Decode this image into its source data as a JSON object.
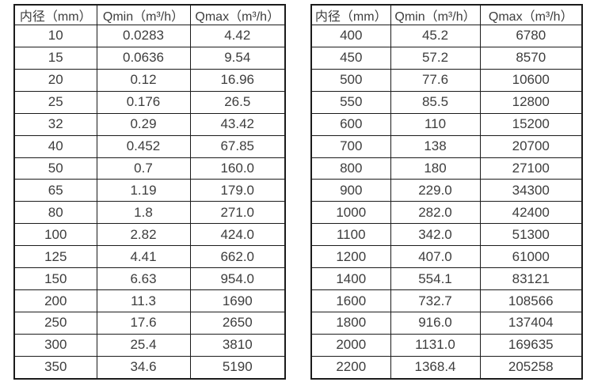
{
  "page": {
    "background_color": "#ffffff",
    "text_color": "#3d3d3d",
    "border_color": "#1b1b1b"
  },
  "tables": [
    {
      "name": "flow-table-small-diameters",
      "headers": [
        "内径（mm）",
        "Qmin（m³/h）",
        "Qmax（m³/h）"
      ],
      "rows": [
        [
          "10",
          "0.0283",
          "4.42"
        ],
        [
          "15",
          "0.0636",
          "9.54"
        ],
        [
          "20",
          "0.12",
          "16.96"
        ],
        [
          "25",
          "0.176",
          "26.5"
        ],
        [
          "32",
          "0.29",
          "43.42"
        ],
        [
          "40",
          "0.452",
          "67.85"
        ],
        [
          "50",
          "0.7",
          "160.0"
        ],
        [
          "65",
          "1.19",
          "179.0"
        ],
        [
          "80",
          "1.8",
          "271.0"
        ],
        [
          "100",
          "2.82",
          "424.0"
        ],
        [
          "125",
          "4.41",
          "662.0"
        ],
        [
          "150",
          "6.63",
          "954.0"
        ],
        [
          "200",
          "11.3",
          "1690"
        ],
        [
          "250",
          "17.6",
          "2650"
        ],
        [
          "300",
          "25.4",
          "3810"
        ],
        [
          "350",
          "34.6",
          "5190"
        ]
      ]
    },
    {
      "name": "flow-table-large-diameters",
      "headers": [
        "内径（mm）",
        "Qmin（m³/h）",
        "Qmax（m³/h）"
      ],
      "rows": [
        [
          "400",
          "45.2",
          "6780"
        ],
        [
          "450",
          "57.2",
          "8570"
        ],
        [
          "500",
          "77.6",
          "10600"
        ],
        [
          "550",
          "85.5",
          "12800"
        ],
        [
          "600",
          "110",
          "15200"
        ],
        [
          "700",
          "138",
          "20700"
        ],
        [
          "800",
          "180",
          "27100"
        ],
        [
          "900",
          "229.0",
          "34300"
        ],
        [
          "1000",
          "282.0",
          "42400"
        ],
        [
          "1100",
          "342.0",
          "51300"
        ],
        [
          "1200",
          "407.0",
          "61000"
        ],
        [
          "1400",
          "554.1",
          "83121"
        ],
        [
          "1600",
          "732.7",
          "108566"
        ],
        [
          "1800",
          "916.0",
          "137404"
        ],
        [
          "2000",
          "1131.0",
          "169635"
        ],
        [
          "2200",
          "1368.4",
          "205258"
        ]
      ]
    }
  ]
}
